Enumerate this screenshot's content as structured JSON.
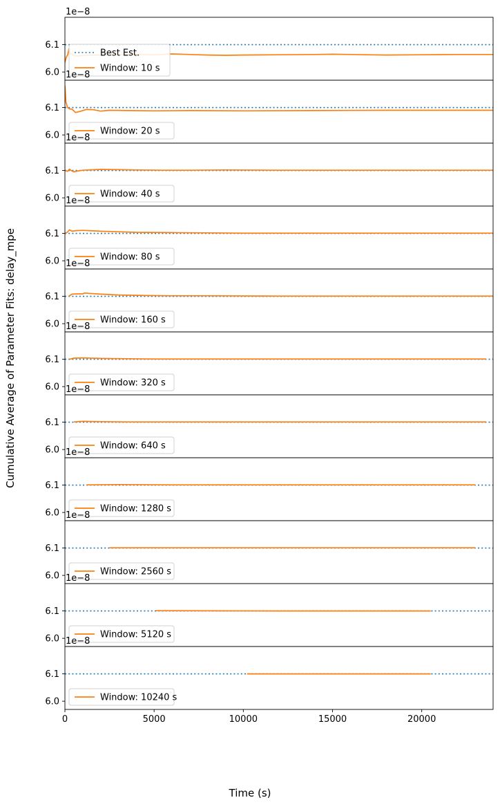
{
  "chart_data": {
    "type": "line",
    "ylabel": "Cumulative Average of Parameter Fits: delay_mpe",
    "xlabel": "Time (s)",
    "xlim": [
      0,
      24000
    ],
    "xticks": [
      0,
      5000,
      10000,
      15000,
      20000
    ],
    "xtick_labels": [
      "0",
      "5000",
      "10000",
      "15000",
      "20000"
    ],
    "ylim": [
      5.97e-08,
      6.2e-08
    ],
    "yticks": [
      6e-08,
      6.1e-08
    ],
    "ytick_labels": [
      "6.0",
      "6.1"
    ],
    "offset_label": "1e−8",
    "best_estimate": {
      "name": "Best Est.",
      "value": 6.1e-08,
      "color": "#1f77b4",
      "style": "dotted"
    },
    "series_color": "#ff7f0e",
    "legend_position": "lower-left",
    "panels": [
      {
        "label": "Window: 10 s",
        "show_best_legend": true,
        "points": [
          [
            0,
            6.035e-08
          ],
          [
            80,
            6.055e-08
          ],
          [
            150,
            6.062e-08
          ],
          [
            230,
            6.085e-08
          ],
          [
            300,
            6.068e-08
          ],
          [
            450,
            6.062e-08
          ],
          [
            700,
            6.058e-08
          ],
          [
            1000,
            6.061e-08
          ],
          [
            1500,
            6.062e-08
          ],
          [
            2500,
            6.062e-08
          ],
          [
            3500,
            6.064e-08
          ],
          [
            5000,
            6.063e-08
          ],
          [
            6000,
            6.066e-08
          ],
          [
            7000,
            6.064e-08
          ],
          [
            8000,
            6.062e-08
          ],
          [
            9000,
            6.061e-08
          ],
          [
            10000,
            6.062e-08
          ],
          [
            12000,
            6.063e-08
          ],
          [
            14000,
            6.064e-08
          ],
          [
            15000,
            6.065e-08
          ],
          [
            16000,
            6.064e-08
          ],
          [
            18000,
            6.062e-08
          ],
          [
            20000,
            6.063e-08
          ],
          [
            22000,
            6.064e-08
          ],
          [
            24000,
            6.064e-08
          ]
        ]
      },
      {
        "label": "Window: 20 s",
        "show_best_legend": false,
        "points": [
          [
            0,
            6.18e-08
          ],
          [
            60,
            6.12e-08
          ],
          [
            150,
            6.1e-08
          ],
          [
            250,
            6.095e-08
          ],
          [
            400,
            6.094e-08
          ],
          [
            600,
            6.082e-08
          ],
          [
            900,
            6.087e-08
          ],
          [
            1200,
            6.093e-08
          ],
          [
            1600,
            6.092e-08
          ],
          [
            2000,
            6.087e-08
          ],
          [
            2500,
            6.09e-08
          ],
          [
            3500,
            6.089e-08
          ],
          [
            5000,
            6.088e-08
          ],
          [
            7000,
            6.089e-08
          ],
          [
            10000,
            6.088e-08
          ],
          [
            14000,
            6.089e-08
          ],
          [
            18000,
            6.09e-08
          ],
          [
            24000,
            6.09e-08
          ]
        ]
      },
      {
        "label": "Window: 40 s",
        "show_best_legend": false,
        "points": [
          [
            0,
            6.1e-08
          ],
          [
            150,
            6.097e-08
          ],
          [
            250,
            6.105e-08
          ],
          [
            350,
            6.1e-08
          ],
          [
            500,
            6.095e-08
          ],
          [
            700,
            6.098e-08
          ],
          [
            1000,
            6.101e-08
          ],
          [
            2000,
            6.104e-08
          ],
          [
            3000,
            6.103e-08
          ],
          [
            4000,
            6.102e-08
          ],
          [
            5500,
            6.101e-08
          ],
          [
            7000,
            6.101e-08
          ],
          [
            9000,
            6.102e-08
          ],
          [
            12000,
            6.101e-08
          ],
          [
            16000,
            6.101e-08
          ],
          [
            20000,
            6.101e-08
          ],
          [
            24000,
            6.101e-08
          ]
        ]
      },
      {
        "label": "Window: 80 s",
        "show_best_legend": false,
        "points": [
          [
            0,
            6.1e-08
          ],
          [
            150,
            6.105e-08
          ],
          [
            250,
            6.113e-08
          ],
          [
            400,
            6.108e-08
          ],
          [
            600,
            6.11e-08
          ],
          [
            1000,
            6.111e-08
          ],
          [
            2000,
            6.108e-08
          ],
          [
            3000,
            6.106e-08
          ],
          [
            4000,
            6.104e-08
          ],
          [
            6000,
            6.103e-08
          ],
          [
            8000,
            6.102e-08
          ],
          [
            10000,
            6.101e-08
          ],
          [
            14000,
            6.101e-08
          ],
          [
            18000,
            6.101e-08
          ],
          [
            24000,
            6.101e-08
          ]
        ]
      },
      {
        "label": "Window: 160 s",
        "show_best_legend": false,
        "points": [
          [
            200,
            6.1e-08
          ],
          [
            400,
            6.108e-08
          ],
          [
            700,
            6.109e-08
          ],
          [
            1000,
            6.109e-08
          ],
          [
            1100,
            6.112e-08
          ],
          [
            1300,
            6.111e-08
          ],
          [
            2000,
            6.108e-08
          ],
          [
            3000,
            6.105e-08
          ],
          [
            4500,
            6.103e-08
          ],
          [
            6000,
            6.102e-08
          ],
          [
            8000,
            6.102e-08
          ],
          [
            12000,
            6.101e-08
          ],
          [
            18000,
            6.101e-08
          ],
          [
            24000,
            6.101e-08
          ]
        ]
      },
      {
        "label": "Window: 320 s",
        "show_best_legend": false,
        "points": [
          [
            250,
            6.1e-08
          ],
          [
            500,
            6.104e-08
          ],
          [
            1000,
            6.105e-08
          ],
          [
            2000,
            6.103e-08
          ],
          [
            3500,
            6.102e-08
          ],
          [
            5000,
            6.101e-08
          ],
          [
            8000,
            6.101e-08
          ],
          [
            12000,
            6.101e-08
          ],
          [
            18000,
            6.101e-08
          ],
          [
            23600,
            6.101e-08
          ]
        ]
      },
      {
        "label": "Window: 640 s",
        "show_best_legend": false,
        "points": [
          [
            500,
            6.101e-08
          ],
          [
            1000,
            6.103e-08
          ],
          [
            2000,
            6.102e-08
          ],
          [
            3500,
            6.101e-08
          ],
          [
            6000,
            6.101e-08
          ],
          [
            10000,
            6.101e-08
          ],
          [
            15000,
            6.101e-08
          ],
          [
            20000,
            6.101e-08
          ],
          [
            23600,
            6.101e-08
          ]
        ]
      },
      {
        "label": "Window: 1280 s",
        "show_best_legend": false,
        "points": [
          [
            1200,
            6.101e-08
          ],
          [
            3000,
            6.102e-08
          ],
          [
            6000,
            6.101e-08
          ],
          [
            10000,
            6.101e-08
          ],
          [
            15000,
            6.101e-08
          ],
          [
            20000,
            6.101e-08
          ],
          [
            23000,
            6.101e-08
          ]
        ]
      },
      {
        "label": "Window: 2560 s",
        "show_best_legend": false,
        "points": [
          [
            2500,
            6.101e-08
          ],
          [
            8000,
            6.101e-08
          ],
          [
            14000,
            6.101e-08
          ],
          [
            20000,
            6.101e-08
          ],
          [
            23000,
            6.101e-08
          ]
        ]
      },
      {
        "label": "Window: 5120 s",
        "show_best_legend": false,
        "points": [
          [
            5100,
            6.101e-08
          ],
          [
            12000,
            6.1e-08
          ],
          [
            20500,
            6.1e-08
          ]
        ]
      },
      {
        "label": "Window: 10240 s",
        "show_best_legend": false,
        "points": [
          [
            10200,
            6.1e-08
          ],
          [
            20500,
            6.1e-08
          ]
        ]
      }
    ]
  }
}
